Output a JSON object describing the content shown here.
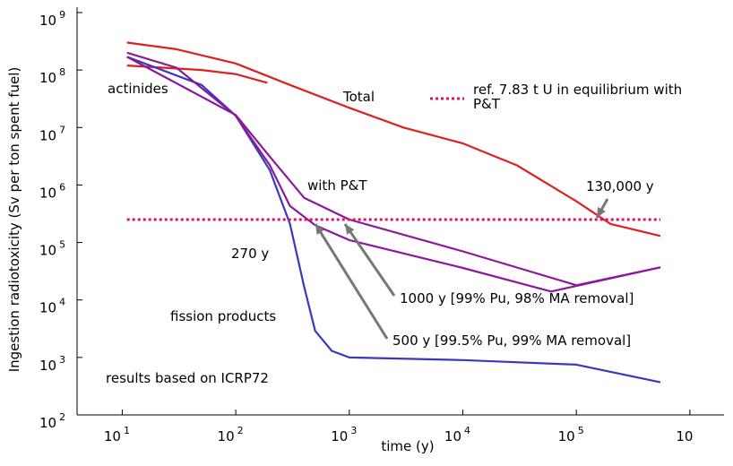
{
  "chart_data": {
    "type": "line",
    "x_label": "time (y)",
    "y_label": "Ingestion radiotoxicity (Sv per ton spent fuel)",
    "log_x": true,
    "log_y": true,
    "xlim": [
      4,
      2000000
    ],
    "ylim": [
      100,
      1000000000
    ],
    "xticks": [
      {
        "value": 10,
        "label": "10",
        "exponent": "1"
      },
      {
        "value": 100,
        "label": "10",
        "exponent": "2"
      },
      {
        "value": 1000,
        "label": "10",
        "exponent": "3"
      },
      {
        "value": 10000,
        "label": "10",
        "exponent": "4"
      },
      {
        "value": 100000,
        "label": "10",
        "exponent": "5"
      },
      {
        "value": 1000000,
        "label": "10"
      }
    ],
    "yticks": [
      {
        "value": 100,
        "label": "10",
        "exponent": "2"
      },
      {
        "value": 1000,
        "label": "10",
        "exponent": "3"
      },
      {
        "value": 10000,
        "label": "10",
        "exponent": "4"
      },
      {
        "value": 100000,
        "label": "10",
        "exponent": "5"
      },
      {
        "value": 1000000,
        "label": "10",
        "exponent": "6"
      },
      {
        "value": 10000000,
        "label": "10",
        "exponent": "7"
      },
      {
        "value": 100000000,
        "label": "10",
        "exponent": "8"
      },
      {
        "value": 1000000000,
        "label": "10",
        "exponent": "9"
      }
    ],
    "series": [
      {
        "name": "Total",
        "color": "#e02020",
        "x": [
          11,
          30,
          100,
          300,
          1000,
          3000,
          10000,
          30000,
          100000,
          200000,
          550000
        ],
        "values": [
          300000000,
          230000000,
          130000000,
          55000000,
          22000000,
          10000000,
          5300000,
          2200000,
          520000,
          210000,
          130000
        ]
      },
      {
        "name": "actinides",
        "color": "#e02020",
        "x": [
          11,
          50,
          100,
          190
        ],
        "values": [
          120000000,
          100000000,
          85000000,
          60000000
        ]
      },
      {
        "name": "fission products",
        "color": "#3838c0",
        "x": [
          11,
          50,
          100,
          200,
          300,
          400,
          500,
          700,
          1000,
          10000,
          100000,
          550000
        ],
        "values": [
          170000000,
          55000000,
          16000000,
          1800000,
          210000,
          17000,
          2900,
          1300,
          1000,
          900,
          750,
          370
        ]
      },
      {
        "name": "500 y [99.5% Pu, 99% MA removal]",
        "color": "#8a1a9a",
        "x": [
          11,
          30,
          100,
          200,
          300,
          500,
          1000,
          10000,
          60000,
          550000
        ],
        "values": [
          200000000,
          110000000,
          16000000,
          2200000,
          430000,
          200000,
          110000,
          36000,
          14000,
          37000
        ]
      },
      {
        "name": "1000 y [99% Pu, 98% MA removal]",
        "color": "#8a1a9a",
        "x": [
          11,
          100,
          200,
          400,
          1000,
          10000,
          100000,
          550000
        ],
        "values": [
          170000000,
          16500000,
          3100000,
          600000,
          250000,
          70000,
          18000,
          37000
        ]
      },
      {
        "name": "ref. 7.83 t U in equilibrium with P&T",
        "color": "#e0106a",
        "dashed": true,
        "x": [
          11,
          550000
        ],
        "values": [
          250000,
          250000
        ]
      }
    ],
    "annotations": [
      "with P&T",
      "270 y",
      "130,000 y",
      "results based on ICRP72"
    ]
  }
}
